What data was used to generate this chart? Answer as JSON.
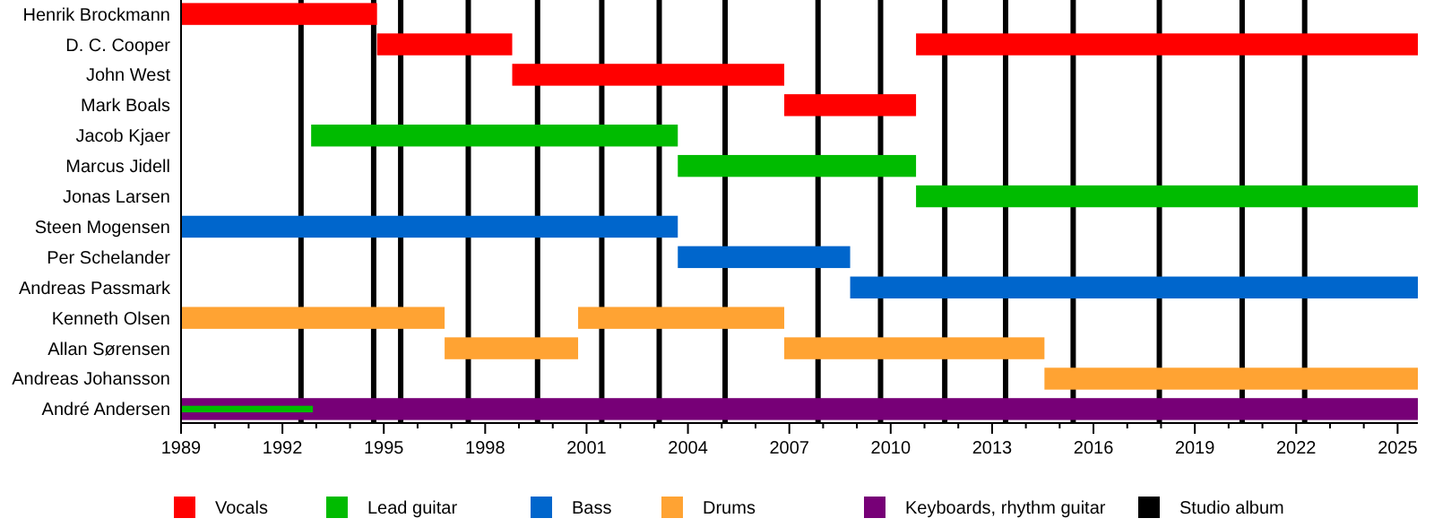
{
  "chart_data": {
    "type": "bar",
    "orientation": "horizontal",
    "categories": [
      "Henrik Brockmann",
      "D. C. Cooper",
      "John West",
      "Mark Boals",
      "Jacob Kjaer",
      "Marcus Jidell",
      "Jonas Larsen",
      "Steen Mogensen",
      "Per Schelander",
      "Andreas Passmark",
      "Kenneth Olsen",
      "Allan Sørensen",
      "Andreas Johansson",
      "André Andersen"
    ],
    "series": [
      {
        "name": "Vocals",
        "color": "#ff0000",
        "base": [
          1989,
          1994.8,
          1998.8,
          2006.85,
          null,
          null,
          null,
          null,
          null,
          null,
          null,
          null,
          null,
          null
        ],
        "values": [
          5.8,
          4.0,
          8.05,
          3.9,
          null,
          null,
          null,
          null,
          null,
          null,
          null,
          null,
          null,
          null
        ]
      },
      {
        "color": "#ff0000",
        "base": [
          null,
          2010.75,
          null,
          null,
          null,
          null,
          null,
          null,
          null,
          null,
          null,
          null,
          null,
          null
        ],
        "values": [
          null,
          14.85,
          null,
          null,
          null,
          null,
          null,
          null,
          null,
          null,
          null,
          null,
          null,
          null
        ]
      },
      {
        "name": "Lead guitar",
        "color": "#00bb00",
        "base": [
          null,
          null,
          null,
          null,
          1992.85,
          2003.7,
          2010.75,
          null,
          null,
          null,
          null,
          null,
          null,
          1989
        ],
        "values": [
          null,
          null,
          null,
          null,
          10.85,
          7.05,
          14.85,
          null,
          null,
          null,
          null,
          null,
          null,
          3.9
        ]
      },
      {
        "name": "Bass",
        "color": "#0066cc",
        "base": [
          null,
          null,
          null,
          null,
          null,
          null,
          null,
          1989,
          2003.7,
          2008.8,
          null,
          null,
          null,
          null
        ],
        "values": [
          null,
          null,
          null,
          null,
          null,
          null,
          null,
          14.7,
          5.1,
          16.8,
          null,
          null,
          null,
          null
        ]
      },
      {
        "name": "Drums",
        "color": "#ffa333",
        "base": [
          null,
          null,
          null,
          null,
          null,
          null,
          null,
          null,
          null,
          null,
          1989,
          1996.8,
          2014.55,
          null
        ],
        "values": [
          null,
          null,
          null,
          null,
          null,
          null,
          null,
          null,
          null,
          null,
          7.8,
          3.95,
          11.05,
          null
        ]
      },
      {
        "color": "#ffa333",
        "base": [
          null,
          null,
          null,
          null,
          null,
          null,
          null,
          null,
          null,
          null,
          2000.75,
          2006.85,
          null,
          null
        ],
        "values": [
          null,
          null,
          null,
          null,
          null,
          null,
          null,
          null,
          null,
          null,
          6.1,
          7.7,
          null,
          null
        ]
      },
      {
        "name": "Keyboards, rhythm guitar",
        "color": "#770077",
        "base": [
          null,
          null,
          null,
          null,
          null,
          null,
          null,
          null,
          null,
          null,
          null,
          null,
          null,
          1989
        ],
        "values": [
          null,
          null,
          null,
          null,
          null,
          null,
          null,
          null,
          null,
          null,
          null,
          null,
          null,
          36.6
        ]
      }
    ],
    "ref_lines": [
      {
        "axis": "x",
        "value": 1992.55,
        "label": "Studio album",
        "color": "#000000"
      },
      {
        "axis": "x",
        "value": 1994.7,
        "color": "#000000"
      },
      {
        "axis": "x",
        "value": 1995.5,
        "color": "#000000"
      },
      {
        "axis": "x",
        "value": 1997.5,
        "color": "#000000"
      },
      {
        "axis": "x",
        "value": 1999.55,
        "color": "#000000"
      },
      {
        "axis": "x",
        "value": 2001.45,
        "color": "#000000"
      },
      {
        "axis": "x",
        "value": 2003.15,
        "color": "#000000"
      },
      {
        "axis": "x",
        "value": 2005.1,
        "color": "#000000"
      },
      {
        "axis": "x",
        "value": 2007.85,
        "color": "#000000"
      },
      {
        "axis": "x",
        "value": 2009.7,
        "color": "#000000"
      },
      {
        "axis": "x",
        "value": 2011.6,
        "color": "#000000"
      },
      {
        "axis": "x",
        "value": 2013.4,
        "color": "#000000"
      },
      {
        "axis": "x",
        "value": 2015.4,
        "color": "#000000"
      },
      {
        "axis": "x",
        "value": 2017.95,
        "color": "#000000"
      },
      {
        "axis": "x",
        "value": 2020.4,
        "color": "#000000"
      },
      {
        "axis": "x",
        "value": 2022.25,
        "color": "#000000"
      }
    ],
    "xlim": [
      1989,
      2025.6
    ],
    "xticks": [
      1989,
      {
        "value": 1990,
        "label": null
      },
      {
        "value": 1991,
        "label": null
      },
      1992,
      {
        "value": 1993,
        "label": null
      },
      {
        "value": 1994,
        "label": null
      },
      1995,
      {
        "value": 1996,
        "label": null
      },
      {
        "value": 1997,
        "label": null
      },
      1998,
      {
        "value": 1999,
        "label": null
      },
      {
        "value": 2000,
        "label": null
      },
      2001,
      {
        "value": 2002,
        "label": null
      },
      {
        "value": 2003,
        "label": null
      },
      2004,
      {
        "value": 2005,
        "label": null
      },
      {
        "value": 2006,
        "label": null
      },
      2007,
      {
        "value": 2008,
        "label": null
      },
      {
        "value": 2009,
        "label": null
      },
      2010,
      {
        "value": 2011,
        "label": null
      },
      {
        "value": 2012,
        "label": null
      },
      2013,
      {
        "value": 2014,
        "label": null
      },
      {
        "value": 2015,
        "label": null
      },
      2016,
      {
        "value": 2017,
        "label": null
      },
      {
        "value": 2018,
        "label": null
      },
      2019,
      {
        "value": 2020,
        "label": null
      },
      {
        "value": 2021,
        "label": null
      },
      2022,
      {
        "value": 2023,
        "label": null
      },
      {
        "value": 2024,
        "label": null
      },
      2025
    ],
    "legend": "bottom"
  }
}
